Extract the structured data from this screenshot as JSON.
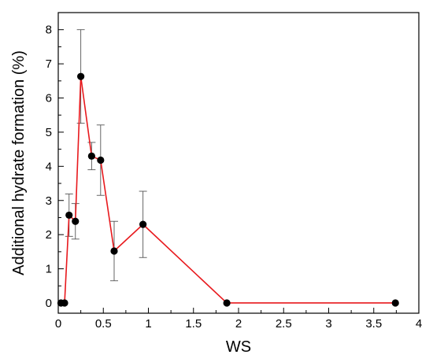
{
  "chart_data": {
    "type": "line",
    "xlabel": "WS",
    "ylabel": "Additional hydrate formation (%)",
    "xlim": [
      0,
      4
    ],
    "ylim": [
      -0.3,
      8.5
    ],
    "x_ticks": [
      "0",
      "0.5",
      "1",
      "1.5",
      "2",
      "2.5",
      "3",
      "3.5",
      "4"
    ],
    "y_ticks": [
      "0",
      "1",
      "2",
      "3",
      "4",
      "5",
      "6",
      "7",
      "8"
    ],
    "grid": false,
    "series": [
      {
        "x": [
          0.03,
          0.07,
          0.12,
          0.19,
          0.25,
          0.37,
          0.47,
          0.62,
          0.94,
          1.87,
          3.74
        ],
        "y": [
          0,
          0,
          2.57,
          2.39,
          6.63,
          4.3,
          4.18,
          1.52,
          2.3,
          0,
          0
        ],
        "error": [
          0,
          0,
          0.62,
          0.52,
          1.37,
          0.4,
          1.03,
          0.87,
          0.97,
          0,
          0
        ],
        "line_color": "#e8191d",
        "marker_color": "#000000"
      }
    ]
  }
}
